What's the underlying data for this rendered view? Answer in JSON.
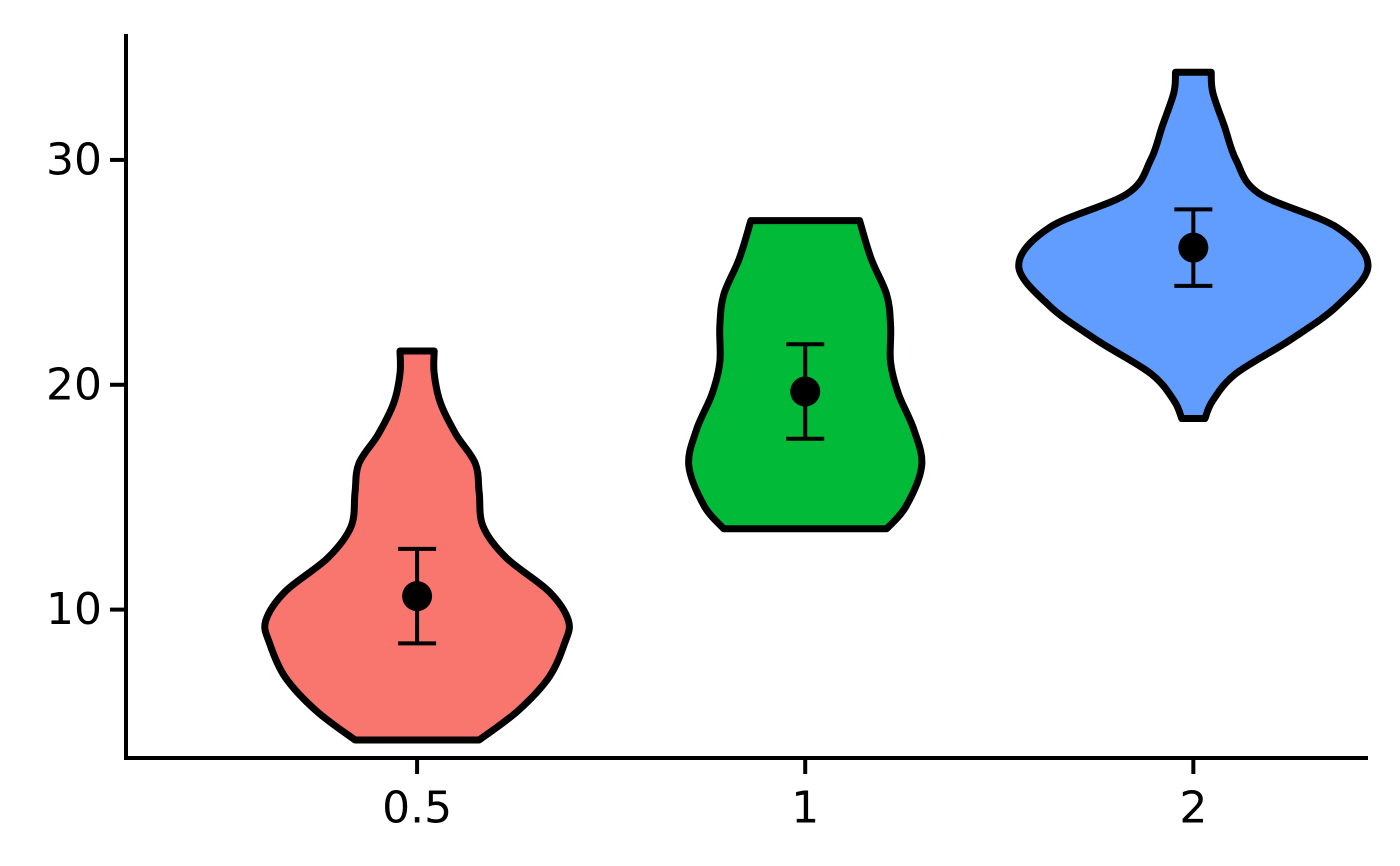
{
  "chart_data": {
    "type": "violin",
    "title": "",
    "xlabel": "",
    "ylabel": "",
    "categories": [
      "0.5",
      "1",
      "2"
    ],
    "colors": [
      "#F8766D",
      "#00BA38",
      "#619CFF"
    ],
    "ylim": [
      3.4,
      35.6
    ],
    "yticks": [
      10,
      20,
      30
    ],
    "ytick_labels": [
      "10",
      "20",
      "30"
    ],
    "grid": false,
    "legend": "none",
    "max_half_width_category_units": 0.4,
    "series": [
      {
        "category": "0.5",
        "mean": 10.6,
        "ci_low": 8.5,
        "ci_high": 12.7,
        "min": 4.2,
        "max": 21.5,
        "density": [
          [
            4.2,
            0.16
          ],
          [
            5.5,
            0.26
          ],
          [
            7.0,
            0.34
          ],
          [
            8.5,
            0.38
          ],
          [
            9.5,
            0.39
          ],
          [
            10.8,
            0.34
          ],
          [
            12.3,
            0.23
          ],
          [
            13.7,
            0.17
          ],
          [
            15.2,
            0.16
          ],
          [
            16.5,
            0.15
          ],
          [
            17.8,
            0.1
          ],
          [
            19.2,
            0.06
          ],
          [
            20.5,
            0.044
          ],
          [
            21.5,
            0.044
          ]
        ]
      },
      {
        "category": "1",
        "mean": 19.7,
        "ci_low": 17.6,
        "ci_high": 21.8,
        "min": 13.6,
        "max": 27.3,
        "density": [
          [
            13.6,
            0.21
          ],
          [
            14.6,
            0.26
          ],
          [
            16.4,
            0.3
          ],
          [
            18.0,
            0.28
          ],
          [
            19.6,
            0.24
          ],
          [
            21.0,
            0.22
          ],
          [
            22.6,
            0.22
          ],
          [
            24.0,
            0.21
          ],
          [
            25.6,
            0.17
          ],
          [
            27.3,
            0.14
          ]
        ]
      },
      {
        "category": "2",
        "mean": 26.1,
        "ci_low": 24.4,
        "ci_high": 27.8,
        "min": 18.5,
        "max": 33.9,
        "density": [
          [
            18.5,
            0.03
          ],
          [
            19.3,
            0.05
          ],
          [
            20.5,
            0.11
          ],
          [
            22.0,
            0.25
          ],
          [
            23.5,
            0.37
          ],
          [
            25.3,
            0.45
          ],
          [
            27.0,
            0.37
          ],
          [
            28.5,
            0.17
          ],
          [
            30.0,
            0.11
          ],
          [
            31.5,
            0.08
          ],
          [
            33.0,
            0.05
          ],
          [
            33.9,
            0.046
          ]
        ]
      }
    ]
  }
}
